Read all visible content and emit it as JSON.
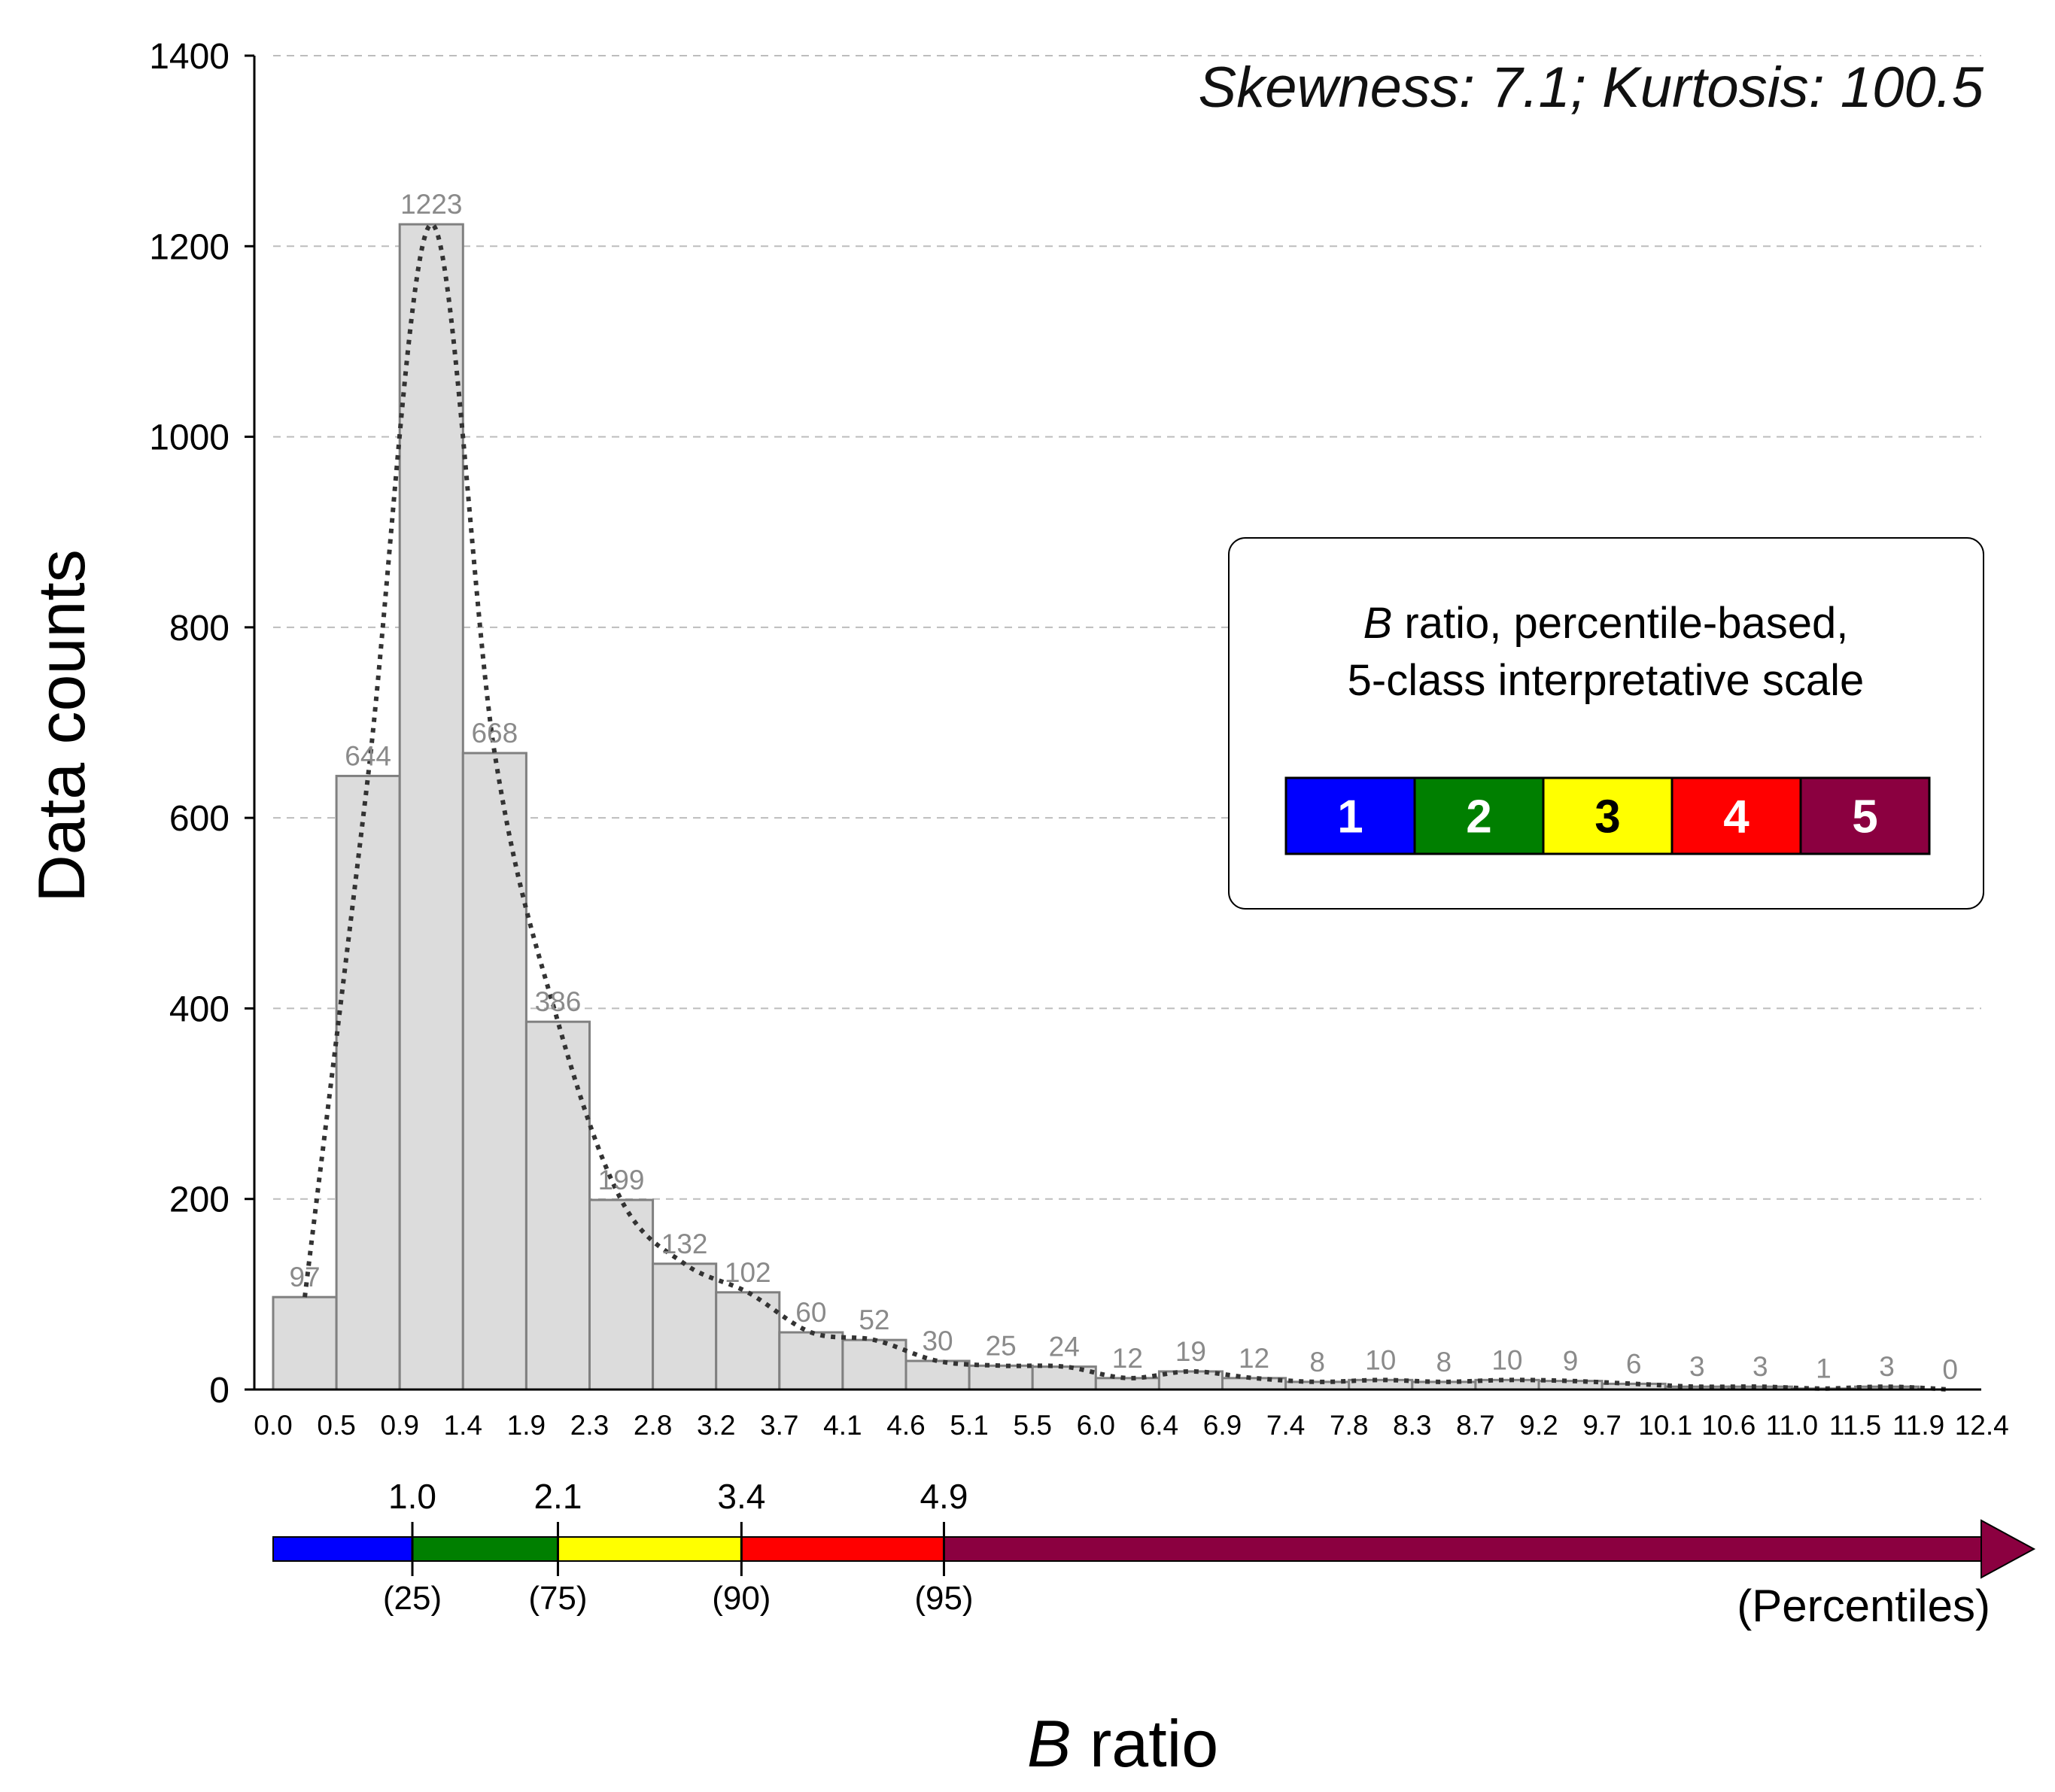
{
  "chart_data": {
    "type": "bar",
    "title": "",
    "stats_text": "Skewness: 7.1; Kurtosis: 100.5",
    "xlabel_italic": "B",
    "xlabel_rest": " ratio",
    "ylabel": "Data counts",
    "ylim": [
      0,
      1400
    ],
    "yticks": [
      0,
      200,
      400,
      600,
      800,
      1000,
      1200,
      1400
    ],
    "ytick_labels": [
      "0",
      "200",
      "400",
      "600",
      "800",
      "1000",
      "1200",
      "1400"
    ],
    "grid": "horizontal dashed",
    "xticks": [
      "0.0",
      "0.5",
      "0.9",
      "1.4",
      "1.9",
      "2.3",
      "2.8",
      "3.2",
      "3.7",
      "4.1",
      "4.6",
      "5.1",
      "5.5",
      "6.0",
      "6.4",
      "6.9",
      "7.4",
      "7.8",
      "8.3",
      "8.7",
      "9.2",
      "9.7",
      "10.1",
      "10.6",
      "11.0",
      "11.5",
      "11.9",
      "12.4"
    ],
    "values": [
      97,
      644,
      1223,
      668,
      386,
      199,
      132,
      102,
      60,
      52,
      30,
      25,
      24,
      12,
      19,
      12,
      8,
      10,
      8,
      10,
      9,
      6,
      3,
      3,
      1,
      3,
      0
    ],
    "value_labels": [
      "97",
      "644",
      "1223",
      "668",
      "386",
      "199",
      "132",
      "102",
      "60",
      "52",
      "30",
      "25",
      "24",
      "12",
      "19",
      "12",
      "8",
      "10",
      "8",
      "10",
      "9",
      "6",
      "3",
      "3",
      "1",
      "3",
      "0"
    ],
    "fit_curve": "dotted density curve",
    "legend": {
      "title_italic": "B",
      "title_line1_rest": " ratio, percentile-based,",
      "title_line2": "5-class interpretative scale",
      "classes": [
        {
          "label": "1",
          "color": "#0000ff",
          "text_color": "#ffffff"
        },
        {
          "label": "2",
          "color": "#007f00",
          "text_color": "#ffffff"
        },
        {
          "label": "3",
          "color": "#ffff00",
          "text_color": "#000000"
        },
        {
          "label": "4",
          "color": "#ff0000",
          "text_color": "#ffffff"
        },
        {
          "label": "5",
          "color": "#8b0040",
          "text_color": "#ffffff"
        }
      ]
    },
    "percentile_scale": {
      "axis_title": "(Percentiles)",
      "thresholds": [
        {
          "value": 1.0,
          "label": "1.0",
          "percentile": "(25)"
        },
        {
          "value": 2.1,
          "label": "2.1",
          "percentile": "(75)"
        },
        {
          "value": 3.4,
          "label": "3.4",
          "percentile": "(90)"
        },
        {
          "value": 4.9,
          "label": "4.9",
          "percentile": "(95)"
        }
      ],
      "colors": [
        "#0000ff",
        "#007f00",
        "#ffff00",
        "#ff0000",
        "#8b0040"
      ]
    },
    "colors": {
      "bar_fill": "#dcdcdc",
      "bar_stroke": "#808080",
      "grid": "#bdbdbd",
      "curve": "#333333",
      "bar_label": "#8a8a8a"
    }
  }
}
